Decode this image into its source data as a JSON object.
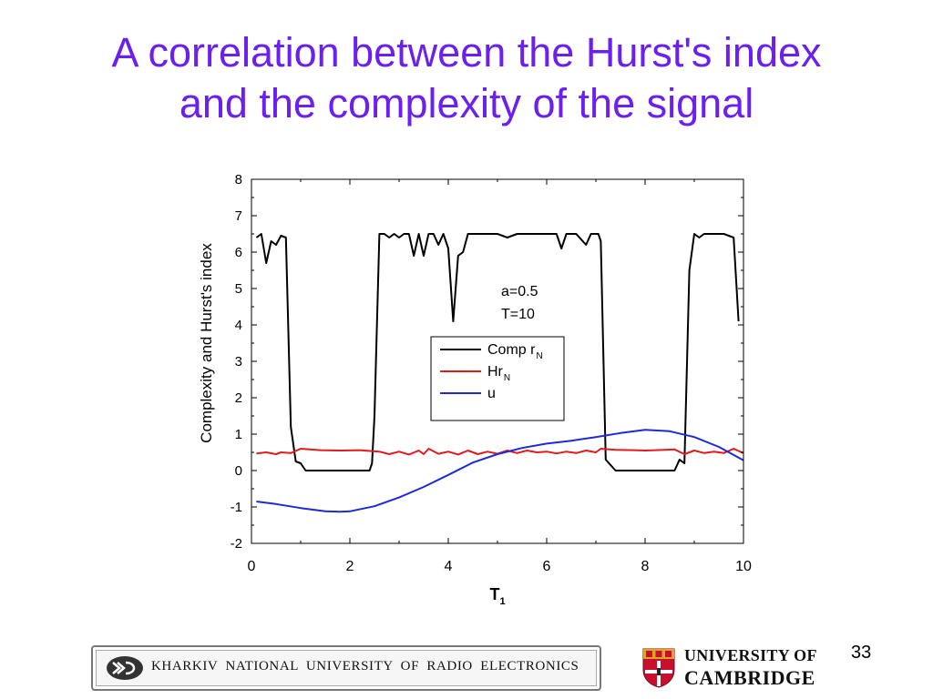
{
  "slide": {
    "title_line1": "A correlation between the Hurst's index",
    "title_line2": "and the complexity of the signal",
    "page_number": "33"
  },
  "footer": {
    "khnure_name": "KHARKIV NATIONAL UNIVERSITY OF RADIO ELECTRONICS",
    "cambridge_line1": "UNIVERSITY OF",
    "cambridge_line2": "CAMBRIDGE"
  },
  "chart_data": {
    "type": "line",
    "xlabel": "T",
    "xlabel_sub": "1",
    "ylabel": "Complexity and Hurst's index",
    "xlim": [
      0,
      10
    ],
    "ylim": [
      -2,
      8
    ],
    "xticks": [
      0,
      2,
      4,
      6,
      8,
      10
    ],
    "yticks": [
      -2,
      -1,
      0,
      1,
      2,
      3,
      4,
      5,
      6,
      7,
      8
    ],
    "grid": false,
    "legend_position": "center-right",
    "annotation_line1": "a=0.5",
    "annotation_line2": "T=10",
    "series": [
      {
        "name": "Comp r",
        "name_sub": "N",
        "color": "#000000",
        "x": [
          0.1,
          0.2,
          0.3,
          0.4,
          0.5,
          0.6,
          0.7,
          0.8,
          0.9,
          1.0,
          1.1,
          1.2,
          1.4,
          1.6,
          1.8,
          2.0,
          2.2,
          2.4,
          2.45,
          2.5,
          2.6,
          2.7,
          2.8,
          2.9,
          3.0,
          3.1,
          3.2,
          3.3,
          3.4,
          3.5,
          3.6,
          3.7,
          3.8,
          3.9,
          4.0,
          4.1,
          4.2,
          4.3,
          4.4,
          4.5,
          4.6,
          4.8,
          5.0,
          5.2,
          5.4,
          5.6,
          5.8,
          6.0,
          6.2,
          6.3,
          6.4,
          6.6,
          6.8,
          6.9,
          7.0,
          7.05,
          7.1,
          7.2,
          7.4,
          7.6,
          7.8,
          8.0,
          8.2,
          8.4,
          8.6,
          8.7,
          8.8,
          8.9,
          9.0,
          9.1,
          9.2,
          9.4,
          9.6,
          9.8,
          9.9
        ],
        "values": [
          6.4,
          6.5,
          5.7,
          6.3,
          6.2,
          6.45,
          6.4,
          1.2,
          0.25,
          0.2,
          0.0,
          0.0,
          0.0,
          0.0,
          0.0,
          0.0,
          0.0,
          0.0,
          0.2,
          1.5,
          6.5,
          6.5,
          6.4,
          6.5,
          6.4,
          6.5,
          6.5,
          5.9,
          6.5,
          5.9,
          6.5,
          6.5,
          6.2,
          6.5,
          6.1,
          4.1,
          5.9,
          6.0,
          6.5,
          6.5,
          6.5,
          6.5,
          6.5,
          6.4,
          6.5,
          6.5,
          6.5,
          6.5,
          6.5,
          6.1,
          6.5,
          6.5,
          6.2,
          6.5,
          6.5,
          6.5,
          6.3,
          0.3,
          0.0,
          0.0,
          0.0,
          0.0,
          0.0,
          0.0,
          0.0,
          0.3,
          0.2,
          5.5,
          6.5,
          6.4,
          6.5,
          6.5,
          6.5,
          6.4,
          4.1
        ]
      },
      {
        "name": "Hr",
        "name_sub": "N",
        "color": "#e31a1c",
        "x": [
          0.1,
          0.3,
          0.5,
          0.6,
          0.8,
          1.0,
          1.4,
          1.8,
          2.2,
          2.6,
          2.8,
          3.0,
          3.2,
          3.4,
          3.5,
          3.6,
          3.8,
          4.0,
          4.2,
          4.4,
          4.6,
          4.8,
          5.0,
          5.2,
          5.4,
          5.6,
          5.8,
          6.0,
          6.2,
          6.4,
          6.6,
          6.8,
          7.0,
          7.1,
          7.4,
          7.8,
          8.0,
          8.4,
          8.6,
          8.8,
          9.0,
          9.2,
          9.4,
          9.6,
          9.8,
          10.0
        ],
        "values": [
          0.47,
          0.5,
          0.45,
          0.5,
          0.48,
          0.6,
          0.56,
          0.55,
          0.56,
          0.52,
          0.45,
          0.52,
          0.44,
          0.55,
          0.45,
          0.6,
          0.46,
          0.52,
          0.44,
          0.55,
          0.45,
          0.52,
          0.46,
          0.55,
          0.48,
          0.55,
          0.5,
          0.52,
          0.47,
          0.52,
          0.48,
          0.55,
          0.5,
          0.6,
          0.57,
          0.56,
          0.55,
          0.57,
          0.58,
          0.45,
          0.55,
          0.48,
          0.52,
          0.48,
          0.6,
          0.48
        ]
      },
      {
        "name": "u",
        "name_sub": "",
        "color": "#1c2bd6",
        "x": [
          0.1,
          0.5,
          1.0,
          1.5,
          1.8,
          2.0,
          2.5,
          3.0,
          3.5,
          4.0,
          4.5,
          5.0,
          5.5,
          6.0,
          6.5,
          7.0,
          7.5,
          8.0,
          8.5,
          9.0,
          9.5,
          10.0
        ],
        "values": [
          -0.85,
          -0.92,
          -1.03,
          -1.12,
          -1.13,
          -1.12,
          -0.98,
          -0.74,
          -0.45,
          -0.12,
          0.22,
          0.45,
          0.62,
          0.74,
          0.82,
          0.92,
          1.03,
          1.12,
          1.08,
          0.92,
          0.65,
          0.28
        ]
      }
    ]
  }
}
